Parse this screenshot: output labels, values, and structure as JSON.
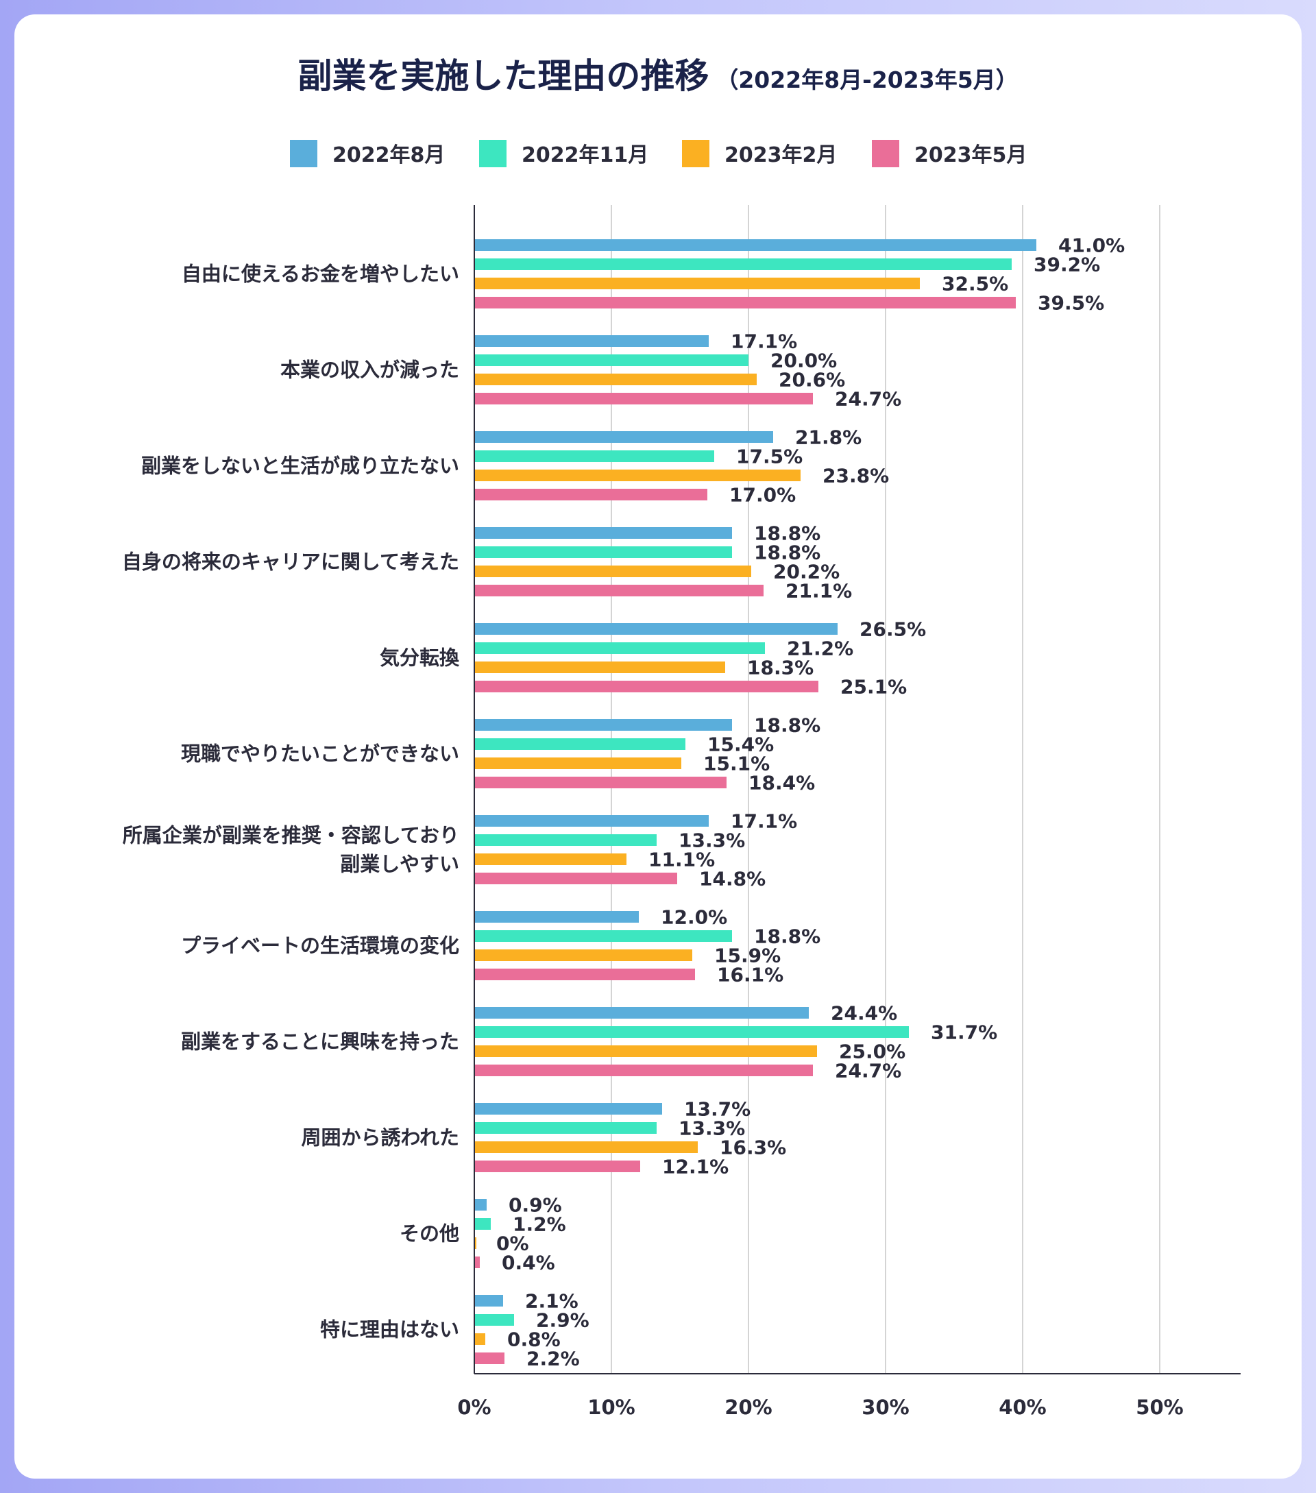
{
  "chart_data": {
    "type": "bar",
    "orientation": "horizontal",
    "title": "副業を実施した理由の推移",
    "subtitle": "（2022年8月-2023年5月）",
    "legend_position": "top",
    "grid": true,
    "xlim": [
      0,
      55
    ],
    "x_ticks": [
      0,
      10,
      20,
      30,
      40,
      50
    ],
    "x_tick_labels": [
      "0%",
      "10%",
      "20%",
      "30%",
      "40%",
      "50%"
    ],
    "categories": [
      "自由に使えるお金を増やしたい",
      "本業の収入が減った",
      "副業をしないと生活が成り立たない",
      "自身の将来のキャリアに関して考えた",
      "気分転換",
      "現職でやりたいことができない",
      "所属企業が副業を推奨・容認しており\n副業しやすい",
      "プライベートの生活環境の変化",
      "副業をすることに興味を持った",
      "周囲から誘われた",
      "その他",
      "特に理由はない"
    ],
    "series": [
      {
        "name": "2022年8月",
        "color": "#5aaedb",
        "values": [
          41.0,
          17.1,
          21.8,
          18.8,
          26.5,
          18.8,
          17.1,
          12.0,
          24.4,
          13.7,
          0.9,
          2.1
        ],
        "labels": [
          "41.0%",
          "17.1%",
          "21.8%",
          "18.8%",
          "26.5%",
          "18.8%",
          "17.1%",
          "12.0%",
          "24.4%",
          "13.7%",
          "0.9%",
          "2.1%"
        ]
      },
      {
        "name": "2022年11月",
        "color": "#3de6c0",
        "values": [
          39.2,
          20.0,
          17.5,
          18.8,
          21.2,
          15.4,
          13.3,
          18.8,
          31.7,
          13.3,
          1.2,
          2.9
        ],
        "labels": [
          "39.2%",
          "20.0%",
          "17.5%",
          "18.8%",
          "21.2%",
          "15.4%",
          "13.3%",
          "18.8%",
          "31.7%",
          "13.3%",
          "1.2%",
          "2.9%"
        ]
      },
      {
        "name": "2023年2月",
        "color": "#fbb022",
        "values": [
          32.5,
          20.6,
          23.8,
          20.2,
          18.3,
          15.1,
          11.1,
          15.9,
          25.0,
          16.3,
          0,
          0.8
        ],
        "labels": [
          "32.5%",
          "20.6%",
          "23.8%",
          "20.2%",
          "18.3%",
          "15.1%",
          "11.1%",
          "15.9%",
          "25.0%",
          "16.3%",
          "0%",
          "0.8%"
        ]
      },
      {
        "name": "2023年5月",
        "color": "#ea6e98",
        "values": [
          39.5,
          24.7,
          17.0,
          21.1,
          25.1,
          18.4,
          14.8,
          16.1,
          24.7,
          12.1,
          0.4,
          2.2
        ],
        "labels": [
          "39.5%",
          "24.7%",
          "17.0%",
          "21.1%",
          "25.1%",
          "18.4%",
          "14.8%",
          "16.1%",
          "24.7%",
          "12.1%",
          "0.4%",
          "2.2%"
        ]
      }
    ]
  }
}
